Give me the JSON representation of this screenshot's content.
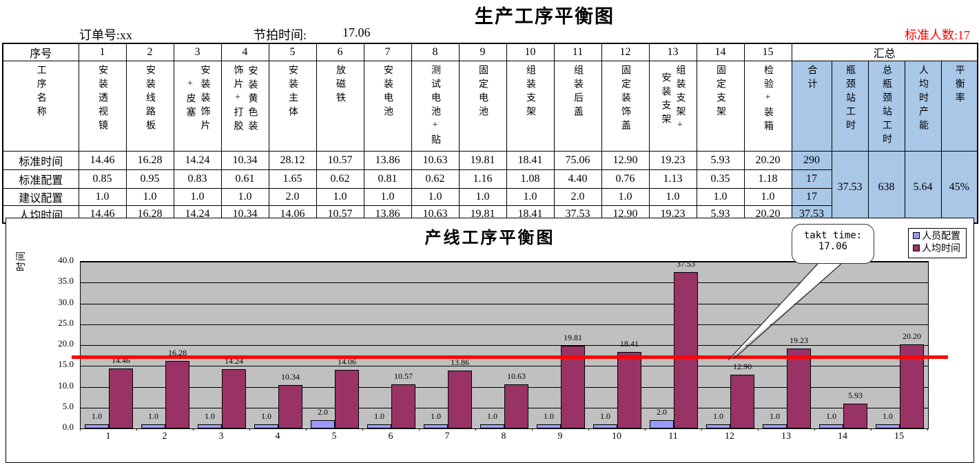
{
  "header": {
    "title": "生产工序平衡图",
    "order_label": "订单号:xx",
    "takt_label": "节拍时间:",
    "takt_value": "17.06",
    "headcount_label": "标准人数:17",
    "headcount_color": "#FF0000"
  },
  "table": {
    "seq_header": "序号",
    "name_header": "工序名称",
    "summary_header": "汇总",
    "total_label": "合计",
    "station_numbers": [
      "1",
      "2",
      "3",
      "4",
      "5",
      "6",
      "7",
      "8",
      "9",
      "10",
      "11",
      "12",
      "13",
      "14",
      "15"
    ],
    "process_names": [
      [
        "安装透视镜"
      ],
      [
        "安装线路板"
      ],
      [
        "安装装饰片",
        "+皮塞"
      ],
      [
        "安装黄色装",
        "饰片+打胶"
      ],
      [
        "安装主体"
      ],
      [
        "放磁铁"
      ],
      [
        "安装电池"
      ],
      [
        "测试电池+贴"
      ],
      [
        "固定电池"
      ],
      [
        "组装支架"
      ],
      [
        "组装后盖"
      ],
      [
        "固定装饰盖"
      ],
      [
        "组装支架+",
        "安装支架"
      ],
      [
        "固定支架"
      ],
      [
        "检验+装箱"
      ]
    ],
    "rows": [
      {
        "label": "标准时间",
        "values": [
          "14.46",
          "16.28",
          "14.24",
          "10.34",
          "28.12",
          "10.57",
          "13.86",
          "10.63",
          "19.81",
          "18.41",
          "75.06",
          "12.90",
          "19.23",
          "5.93",
          "20.20"
        ],
        "total": "290"
      },
      {
        "label": "标准配置",
        "values": [
          "0.85",
          "0.95",
          "0.83",
          "0.61",
          "1.65",
          "0.62",
          "0.81",
          "0.62",
          "1.16",
          "1.08",
          "4.40",
          "0.76",
          "1.13",
          "0.35",
          "1.18"
        ],
        "total": "17"
      },
      {
        "label": "建议配置",
        "values": [
          "1.0",
          "1.0",
          "1.0",
          "1.0",
          "2.0",
          "1.0",
          "1.0",
          "1.0",
          "1.0",
          "1.0",
          "2.0",
          "1.0",
          "1.0",
          "1.0",
          "1.0"
        ],
        "total": "17"
      },
      {
        "label": "人均时间",
        "values": [
          "14.46",
          "16.28",
          "14.24",
          "10.34",
          "14.06",
          "10.57",
          "13.86",
          "10.63",
          "19.81",
          "18.41",
          "37.53",
          "12.90",
          "19.23",
          "5.93",
          "20.20"
        ],
        "total": "37.53"
      }
    ],
    "summary_metrics": [
      {
        "label": "瓶颈站工时",
        "value": "37.53"
      },
      {
        "label": "总瓶颈站工时",
        "value": "638"
      },
      {
        "label": "人均时产能",
        "value": "5.64"
      },
      {
        "label": "平衡率",
        "value": "45%"
      }
    ],
    "header_fill": "#A9C7E7"
  },
  "chart_data": {
    "type": "bar",
    "title": "产线工序平衡图",
    "xlabel": "",
    "ylabel": "时间",
    "categories": [
      "1",
      "2",
      "3",
      "4",
      "5",
      "6",
      "7",
      "8",
      "9",
      "10",
      "11",
      "12",
      "13",
      "14",
      "15"
    ],
    "series": [
      {
        "name": "人员配置",
        "color": "#9999FF",
        "values": [
          1.0,
          1.0,
          1.0,
          1.0,
          2.0,
          1.0,
          1.0,
          1.0,
          1.0,
          1.0,
          2.0,
          1.0,
          1.0,
          1.0,
          1.0
        ],
        "labels": [
          "1.0",
          "1.0",
          "1.0",
          "1.0",
          "2.0",
          "1.0",
          "1.0",
          "1.0",
          "1.0",
          "1.0",
          "2.0",
          "1.0",
          "1.0",
          "1.0",
          "1.0"
        ]
      },
      {
        "name": "人均时间",
        "color": "#993366",
        "values": [
          14.46,
          16.28,
          14.24,
          10.34,
          14.06,
          10.57,
          13.86,
          10.63,
          19.81,
          18.41,
          37.53,
          12.9,
          19.23,
          5.93,
          20.2
        ],
        "labels": [
          "14.46",
          "16.28",
          "14.24",
          "10.34",
          "14.06",
          "10.57",
          "13.86",
          "10.63",
          "19.81",
          "18.41",
          "37.53",
          "12.90",
          "19.23",
          "5.93",
          "20.20"
        ]
      }
    ],
    "ylim": [
      0,
      40
    ],
    "ytick_step": 5,
    "yticks": [
      "0.0",
      "5.0",
      "10.0",
      "15.0",
      "20.0",
      "25.0",
      "30.0",
      "35.0",
      "40.0"
    ],
    "grid": true,
    "plot_bg": "#C0C0C0",
    "legend_position": "top-right",
    "takt_line": {
      "value": 17.06,
      "color": "#FF0000"
    },
    "callout": {
      "line1": "takt time:",
      "line2": "17.06"
    }
  }
}
